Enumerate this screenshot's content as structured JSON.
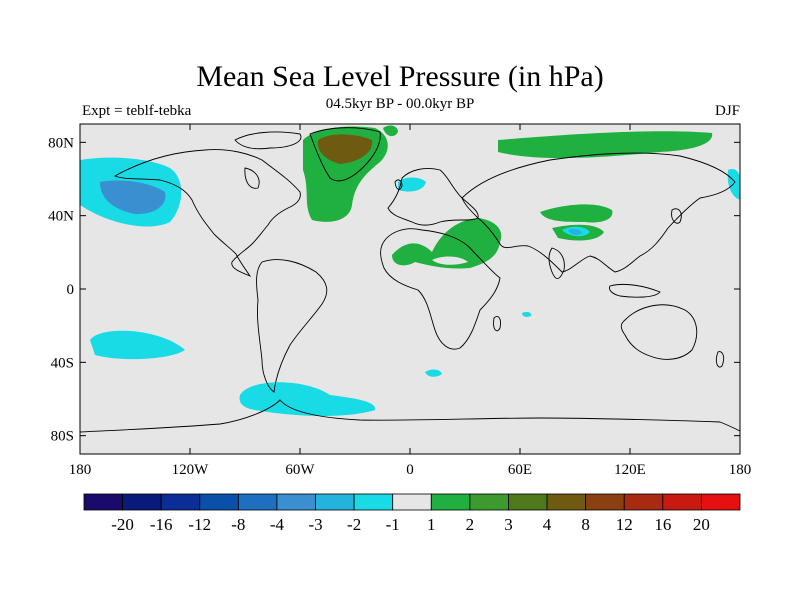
{
  "title": "Mean Sea Level Pressure (in hPa)",
  "subtitle": "04.5kyr BP - 00.0kyr BP",
  "left_label": "Expt = teblf-tebka",
  "right_label": "DJF",
  "map": {
    "lon_range": [
      -180,
      180
    ],
    "lat_range": [
      -90,
      90
    ],
    "background_color": "#e6e6e6",
    "coast_color": "#000000",
    "x_ticks": [
      {
        "lon": -180,
        "label": "180"
      },
      {
        "lon": -120,
        "label": "120W"
      },
      {
        "lon": -60,
        "label": "60W"
      },
      {
        "lon": 0,
        "label": "0"
      },
      {
        "lon": 60,
        "label": "60E"
      },
      {
        "lon": 120,
        "label": "120E"
      },
      {
        "lon": 180,
        "label": "180"
      }
    ],
    "y_ticks": [
      {
        "lat": 80,
        "label": "80N"
      },
      {
        "lat": 40,
        "label": "40N"
      },
      {
        "lat": 0,
        "label": "0"
      },
      {
        "lat": -40,
        "label": "40S"
      },
      {
        "lat": -80,
        "label": "80S"
      }
    ]
  },
  "colorbar": {
    "colors": [
      "#1a0a6b",
      "#0a1a7a",
      "#0a2e95",
      "#0a4fa8",
      "#1f6fc0",
      "#3a8fd0",
      "#23b3dd",
      "#19dbe6",
      "#e6e6e6",
      "#20b040",
      "#3c9a2e",
      "#4f7a1a",
      "#6e5a10",
      "#8a4010",
      "#a82a10",
      "#c81a10",
      "#e61010"
    ],
    "labels": [
      "-20",
      "-16",
      "-12",
      "-8",
      "-4",
      "-3",
      "-2",
      "-1",
      "1",
      "2",
      "3",
      "4",
      "8",
      "12",
      "16",
      "20"
    ]
  },
  "chart_data": {
    "type": "heatmap",
    "variable": "Mean Sea Level Pressure difference",
    "units": "hPa",
    "title": "Mean Sea Level Pressure (in hPa)",
    "subtitle": "04.5kyr BP - 00.0kyr BP",
    "season": "DJF",
    "levels": [
      -20,
      -16,
      -12,
      -8,
      -4,
      -3,
      -2,
      -1,
      1,
      2,
      3,
      4,
      8,
      12,
      16,
      20
    ],
    "anomalies": [
      {
        "region": "North Pacific",
        "lon_range": [
          -180,
          -125
        ],
        "lat_range": [
          25,
          65
        ],
        "class": "-3 to -1",
        "core_class": "-4 to -3",
        "core_center": [
          -150,
          47
        ]
      },
      {
        "region": "Greenland",
        "lon_range": [
          -58,
          -20
        ],
        "lat_range": [
          32,
          85
        ],
        "class": "1 to 2",
        "core_class": "3 to 4",
        "core_center": [
          -42,
          76
        ]
      },
      {
        "region": "Norwegian Sea",
        "lon_range": [
          -2,
          12
        ],
        "lat_range": [
          55,
          68
        ],
        "class": "-2 to -1"
      },
      {
        "region": "Arctic Siberia",
        "lon_range": [
          30,
          150
        ],
        "lat_range": [
          72,
          85
        ],
        "class": "1 to 2"
      },
      {
        "region": "North Africa / Middle East",
        "lon_range": [
          -10,
          55
        ],
        "lat_range": [
          5,
          35
        ],
        "class": "1 to 2"
      },
      {
        "region": "Central Asia",
        "lon_range": [
          75,
          112
        ],
        "lat_range": [
          25,
          45
        ],
        "class": "1 to 2"
      },
      {
        "region": "Tibet",
        "lon_range": [
          82,
          100
        ],
        "lat_range": [
          28,
          35
        ],
        "class": "-3 to -1"
      },
      {
        "region": "Far East Pacific edge",
        "lon_range": [
          175,
          180
        ],
        "lat_range": [
          25,
          55
        ],
        "class": "-2 to -1"
      },
      {
        "region": "South Pacific",
        "lon_range": [
          -175,
          -120
        ],
        "lat_range": [
          -40,
          -22
        ],
        "class": "-2 to -1"
      },
      {
        "region": "Drake Passage",
        "lon_range": [
          -95,
          -15
        ],
        "lat_range": [
          -70,
          -50
        ],
        "class": "-2 to -1"
      },
      {
        "region": "South Atlantic",
        "lon_range": [
          -8,
          5
        ],
        "lat_range": [
          -42,
          -38
        ],
        "class": "-2 to -1"
      }
    ]
  }
}
